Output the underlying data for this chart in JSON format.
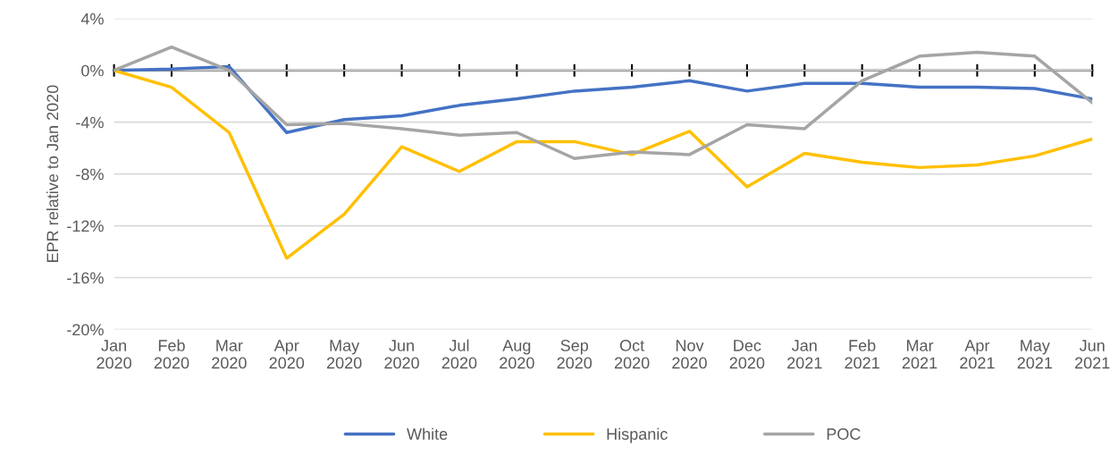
{
  "chart_data": {
    "type": "line",
    "ylabel": "EPR relative to Jan 2020",
    "categories": [
      "Jan\n2020",
      "Feb\n2020",
      "Mar\n2020",
      "Apr\n2020",
      "May\n2020",
      "Jun\n2020",
      "Jul\n2020",
      "Aug\n2020",
      "Sep\n2020",
      "Oct\n2020",
      "Nov\n2020",
      "Dec\n2020",
      "Jan\n2021",
      "Feb\n2021",
      "Mar\n2021",
      "Apr\n2021",
      "May\n2021",
      "Jun\n2021"
    ],
    "series": [
      {
        "name": "White",
        "color": "#4472c4",
        "values": [
          0,
          0.1,
          0.3,
          -4.8,
          -3.8,
          -3.5,
          -2.7,
          -2.2,
          -1.6,
          -1.3,
          -0.8,
          -1.6,
          -1.0,
          -1.0,
          -1.3,
          -1.3,
          -1.4,
          -2.2
        ]
      },
      {
        "name": "Hispanic",
        "color": "#ffc000",
        "values": [
          0,
          -1.3,
          -4.8,
          -14.5,
          -11.1,
          -5.9,
          -7.8,
          -5.5,
          -5.5,
          -6.5,
          -4.7,
          -9.0,
          -6.4,
          -7.1,
          -7.5,
          -7.3,
          -6.6,
          -5.3
        ]
      },
      {
        "name": "POC",
        "color": "#a5a5a5",
        "values": [
          0,
          1.8,
          0,
          -4.2,
          -4.1,
          -4.5,
          -5.0,
          -4.8,
          -6.8,
          -6.3,
          -6.5,
          -4.2,
          -4.5,
          -0.8,
          1.1,
          1.4,
          1.1,
          -2.5
        ]
      }
    ],
    "ylim": [
      -20,
      4
    ],
    "yticks": [
      {
        "value": 4,
        "label": "4%"
      },
      {
        "value": 0,
        "label": "0%"
      },
      {
        "value": -4,
        "label": "-4%"
      },
      {
        "value": -8,
        "label": "-8%"
      },
      {
        "value": -12,
        "label": "-12%"
      },
      {
        "value": -16,
        "label": "-16%"
      },
      {
        "value": -20,
        "label": "-20%"
      }
    ],
    "grid": "y",
    "legend": "bottom",
    "marker": "none",
    "line_style": "solid"
  }
}
